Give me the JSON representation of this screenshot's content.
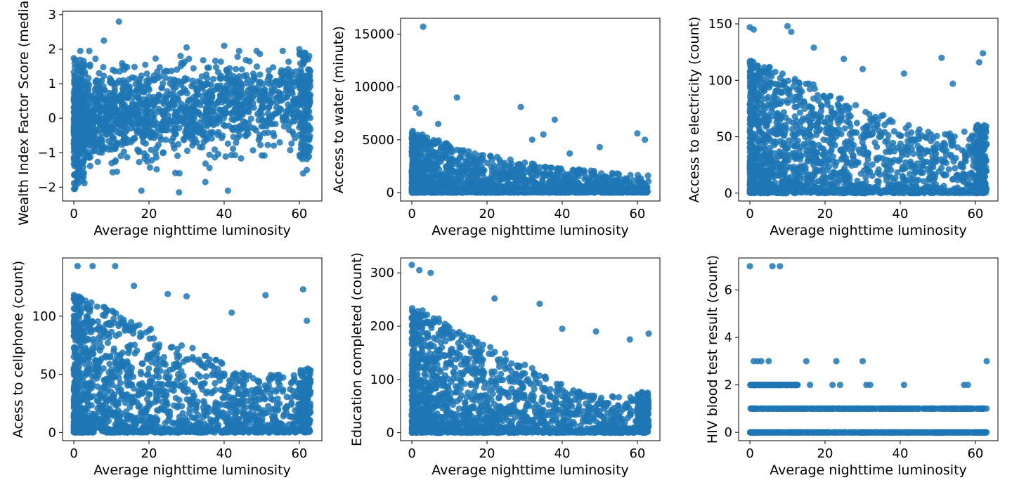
{
  "chart_data": [
    {
      "type": "scatter",
      "xlabel": "Average nighttime luminosity",
      "ylabel": "Wealth Index Factor Score (median)",
      "xlim": [
        -3,
        66
      ],
      "ylim": [
        -2.4,
        3.1
      ],
      "xticks": [
        0,
        20,
        40,
        60
      ],
      "yticks": [
        -2,
        -1,
        0,
        1,
        2,
        3
      ],
      "color": "#1f77b4",
      "series": [
        {
          "outliers_x": [
            12,
            8,
            30,
            40,
            28,
            18,
            61,
            60,
            62,
            41,
            35,
            44
          ],
          "outliers_y": [
            2.8,
            2.25,
            2.05,
            2.1,
            -2.15,
            -2.1,
            -1.6,
            2.0,
            -1.5,
            -2.1,
            -1.85,
            1.95
          ]
        }
      ],
      "cloud": {
        "x_range": [
          0,
          63
        ],
        "y_center_start": -0.1,
        "y_center_end": 0.6,
        "spread_start": 0.9,
        "spread_end": 0.75
      },
      "legend": "none",
      "grid": false
    },
    {
      "type": "scatter",
      "xlabel": "Average nighttime luminosity",
      "ylabel": "Access to water (minute)",
      "xlim": [
        -3,
        66
      ],
      "ylim": [
        -800,
        16500
      ],
      "xticks": [
        0,
        20,
        40,
        60
      ],
      "yticks": [
        0,
        5000,
        10000,
        15000
      ],
      "color": "#1f77b4",
      "series": [
        {
          "outliers_x": [
            3,
            12,
            29,
            38,
            7,
            1,
            2,
            35,
            50,
            62,
            60,
            42,
            32
          ],
          "outliers_y": [
            15700,
            9000,
            8100,
            6900,
            6500,
            8000,
            7500,
            5500,
            4300,
            5000,
            5600,
            3700,
            5000
          ]
        }
      ],
      "cloud": {
        "x_range": [
          0,
          63
        ],
        "decay": "exponential",
        "max_start": 5000,
        "max_end": 900
      },
      "legend": "none",
      "grid": false
    },
    {
      "type": "scatter",
      "xlabel": "Average nighttime luminosity",
      "ylabel": "Access to electricity (count)",
      "xlim": [
        -3,
        66
      ],
      "ylim": [
        -7,
        155
      ],
      "xticks": [
        0,
        20,
        40,
        60
      ],
      "yticks": [
        0,
        50,
        100,
        150
      ],
      "color": "#1f77b4",
      "series": [
        {
          "outliers_x": [
            0,
            1,
            10,
            11,
            17,
            25,
            30,
            41,
            51,
            62,
            61,
            54
          ],
          "outliers_y": [
            147,
            145,
            148,
            143,
            129,
            119,
            110,
            106,
            120,
            124,
            116,
            97
          ]
        }
      ],
      "cloud": {
        "x_range": [
          0,
          63
        ],
        "decay": "linear",
        "max_start": 120,
        "max_end": 55
      },
      "legend": "none",
      "grid": false
    },
    {
      "type": "scatter",
      "xlabel": "Average nighttime luminosity",
      "ylabel": "Acess to cellphone (count)",
      "xlim": [
        -3,
        66
      ],
      "ylim": [
        -7,
        150
      ],
      "xticks": [
        0,
        20,
        40,
        60
      ],
      "yticks": [
        0,
        50,
        100
      ],
      "color": "#1f77b4",
      "series": [
        {
          "outliers_x": [
            1,
            5,
            11,
            16,
            25,
            30,
            42,
            51,
            61,
            62
          ],
          "outliers_y": [
            143,
            143,
            143,
            126,
            119,
            117,
            103,
            118,
            123,
            96
          ]
        }
      ],
      "cloud": {
        "x_range": [
          0,
          63
        ],
        "decay": "linear",
        "max_start": 120,
        "max_end": 50
      },
      "legend": "none",
      "grid": false
    },
    {
      "type": "scatter",
      "xlabel": "Average nighttime luminosity",
      "ylabel": "Education completed (count)",
      "xlim": [
        -3,
        66
      ],
      "ylim": [
        -15,
        328
      ],
      "xticks": [
        0,
        20,
        40,
        60
      ],
      "yticks": [
        0,
        100,
        200,
        300
      ],
      "color": "#1f77b4",
      "series": [
        {
          "outliers_x": [
            0,
            2,
            5,
            22,
            34,
            40,
            49,
            58,
            63
          ],
          "outliers_y": [
            315,
            305,
            300,
            252,
            242,
            195,
            190,
            175,
            186
          ]
        }
      ],
      "cloud": {
        "x_range": [
          0,
          63
        ],
        "decay": "linear",
        "max_start": 240,
        "max_end": 70
      },
      "legend": "none",
      "grid": false
    },
    {
      "type": "scatter",
      "xlabel": "Average nighttime luminosity",
      "ylabel": "HIV blood test result (count)",
      "xlim": [
        -3,
        66
      ],
      "ylim": [
        -0.35,
        7.35
      ],
      "xticks": [
        0,
        20,
        40,
        60
      ],
      "yticks": [
        0,
        2,
        4,
        6
      ],
      "color": "#1f77b4",
      "series": [
        {
          "outliers_x": [
            0,
            6,
            8,
            1,
            2,
            3,
            5,
            15,
            23,
            30,
            63,
            41,
            57,
            58,
            16,
            22,
            24,
            31,
            32
          ],
          "outliers_y": [
            7,
            7,
            7,
            3,
            3,
            3,
            3,
            3,
            3,
            3,
            3,
            2,
            2,
            2,
            2,
            2,
            2,
            2,
            2
          ]
        }
      ],
      "cloud": {
        "x_range": [
          0,
          63
        ],
        "levels": [
          0,
          1,
          2
        ],
        "level_extent": [
          63,
          63,
          13
        ]
      },
      "legend": "none",
      "grid": false
    }
  ]
}
